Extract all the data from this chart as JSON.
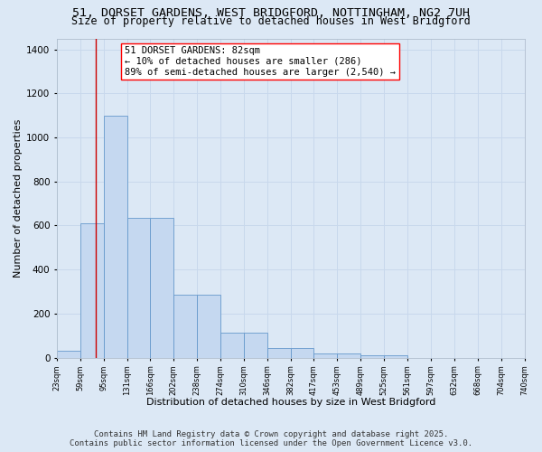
{
  "title1": "51, DORSET GARDENS, WEST BRIDGFORD, NOTTINGHAM, NG2 7UH",
  "title2": "Size of property relative to detached houses in West Bridgford",
  "xlabel": "Distribution of detached houses by size in West Bridgford",
  "ylabel": "Number of detached properties",
  "footer1": "Contains HM Land Registry data © Crown copyright and database right 2025.",
  "footer2": "Contains public sector information licensed under the Open Government Licence v3.0.",
  "bin_edges": [
    23,
    59,
    95,
    131,
    166,
    202,
    238,
    274,
    310,
    346,
    382,
    417,
    453,
    489,
    525,
    561,
    597,
    632,
    668,
    704,
    740
  ],
  "bar_heights": [
    30,
    610,
    1100,
    635,
    635,
    285,
    285,
    115,
    115,
    45,
    45,
    20,
    20,
    10,
    10,
    0,
    0,
    0,
    0,
    0
  ],
  "bar_color": "#c5d8f0",
  "bar_edge_color": "#6699cc",
  "red_line_x": 82,
  "annotation_line1": "51 DORSET GARDENS: 82sqm",
  "annotation_line2": "← 10% of detached houses are smaller (286)",
  "annotation_line3": "89% of semi-detached houses are larger (2,540) →",
  "ylim": [
    0,
    1450
  ],
  "yticks": [
    0,
    200,
    400,
    600,
    800,
    1000,
    1200,
    1400
  ],
  "bg_color": "#dce8f5",
  "grid_color": "#c8d8ec",
  "title_fontsize": 9.5,
  "subtitle_fontsize": 8.5,
  "annotation_fontsize": 7.5,
  "footer_fontsize": 6.5,
  "ylabel_fontsize": 8,
  "xlabel_fontsize": 8
}
